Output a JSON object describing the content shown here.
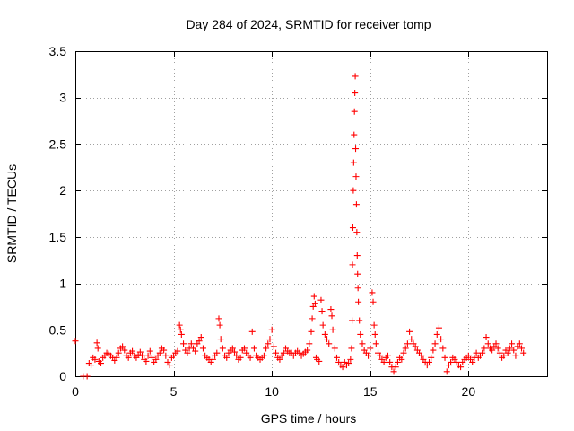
{
  "chart_data": {
    "type": "scatter",
    "title": "Day 284 of 2024, SRMTID for receiver tomp",
    "xlabel": "GPS time / hours",
    "ylabel": "SRMTID / TECUs",
    "xlim": [
      0,
      24
    ],
    "ylim": [
      0,
      3.5
    ],
    "x_ticks": [
      0,
      5,
      10,
      15,
      20
    ],
    "x_tick_labels": [
      "0",
      "5",
      "10",
      "15",
      "20"
    ],
    "y_ticks": [
      0,
      0.5,
      1,
      1.5,
      2,
      2.5,
      3,
      3.5
    ],
    "y_tick_labels": [
      "0",
      "0.5",
      "1",
      "1.5",
      "2",
      "2.5",
      "3",
      "3.5"
    ],
    "grid": true,
    "marker": "+",
    "marker_color": "#ff0000",
    "series": [
      {
        "name": "SRMTID",
        "points": [
          [
            0.0,
            0.38
          ],
          [
            0.4,
            0.0
          ],
          [
            0.6,
            0.0
          ],
          [
            0.7,
            0.14
          ],
          [
            0.8,
            0.12
          ],
          [
            0.9,
            0.2
          ],
          [
            1.0,
            0.18
          ],
          [
            1.1,
            0.36
          ],
          [
            1.15,
            0.3
          ],
          [
            1.2,
            0.16
          ],
          [
            1.3,
            0.14
          ],
          [
            1.4,
            0.2
          ],
          [
            1.5,
            0.22
          ],
          [
            1.6,
            0.25
          ],
          [
            1.7,
            0.24
          ],
          [
            1.8,
            0.22
          ],
          [
            1.9,
            0.2
          ],
          [
            2.0,
            0.17
          ],
          [
            2.1,
            0.2
          ],
          [
            2.2,
            0.25
          ],
          [
            2.3,
            0.3
          ],
          [
            2.4,
            0.32
          ],
          [
            2.5,
            0.28
          ],
          [
            2.6,
            0.22
          ],
          [
            2.7,
            0.2
          ],
          [
            2.8,
            0.25
          ],
          [
            2.9,
            0.27
          ],
          [
            3.0,
            0.22
          ],
          [
            3.1,
            0.2
          ],
          [
            3.2,
            0.23
          ],
          [
            3.3,
            0.26
          ],
          [
            3.4,
            0.22
          ],
          [
            3.5,
            0.18
          ],
          [
            3.6,
            0.16
          ],
          [
            3.7,
            0.22
          ],
          [
            3.8,
            0.27
          ],
          [
            3.9,
            0.2
          ],
          [
            4.0,
            0.15
          ],
          [
            4.1,
            0.18
          ],
          [
            4.2,
            0.22
          ],
          [
            4.3,
            0.25
          ],
          [
            4.4,
            0.3
          ],
          [
            4.5,
            0.28
          ],
          [
            4.6,
            0.22
          ],
          [
            4.7,
            0.15
          ],
          [
            4.8,
            0.12
          ],
          [
            4.9,
            0.2
          ],
          [
            5.0,
            0.22
          ],
          [
            5.1,
            0.25
          ],
          [
            5.2,
            0.27
          ],
          [
            5.3,
            0.55
          ],
          [
            5.35,
            0.5
          ],
          [
            5.4,
            0.45
          ],
          [
            5.5,
            0.35
          ],
          [
            5.6,
            0.28
          ],
          [
            5.7,
            0.25
          ],
          [
            5.8,
            0.3
          ],
          [
            5.9,
            0.35
          ],
          [
            6.0,
            0.3
          ],
          [
            6.1,
            0.27
          ],
          [
            6.2,
            0.35
          ],
          [
            6.3,
            0.38
          ],
          [
            6.4,
            0.42
          ],
          [
            6.5,
            0.3
          ],
          [
            6.6,
            0.22
          ],
          [
            6.7,
            0.2
          ],
          [
            6.8,
            0.18
          ],
          [
            6.9,
            0.15
          ],
          [
            7.0,
            0.18
          ],
          [
            7.1,
            0.22
          ],
          [
            7.2,
            0.25
          ],
          [
            7.3,
            0.62
          ],
          [
            7.35,
            0.55
          ],
          [
            7.4,
            0.4
          ],
          [
            7.5,
            0.3
          ],
          [
            7.6,
            0.22
          ],
          [
            7.7,
            0.2
          ],
          [
            7.8,
            0.25
          ],
          [
            7.9,
            0.28
          ],
          [
            8.0,
            0.3
          ],
          [
            8.1,
            0.26
          ],
          [
            8.2,
            0.22
          ],
          [
            8.3,
            0.18
          ],
          [
            8.4,
            0.2
          ],
          [
            8.5,
            0.28
          ],
          [
            8.6,
            0.3
          ],
          [
            8.7,
            0.25
          ],
          [
            8.8,
            0.22
          ],
          [
            8.9,
            0.2
          ],
          [
            9.0,
            0.48
          ],
          [
            9.1,
            0.3
          ],
          [
            9.2,
            0.22
          ],
          [
            9.3,
            0.2
          ],
          [
            9.4,
            0.18
          ],
          [
            9.5,
            0.2
          ],
          [
            9.6,
            0.22
          ],
          [
            9.7,
            0.3
          ],
          [
            9.8,
            0.35
          ],
          [
            9.9,
            0.4
          ],
          [
            10.0,
            0.5
          ],
          [
            10.1,
            0.32
          ],
          [
            10.2,
            0.25
          ],
          [
            10.3,
            0.2
          ],
          [
            10.4,
            0.18
          ],
          [
            10.5,
            0.22
          ],
          [
            10.6,
            0.25
          ],
          [
            10.7,
            0.3
          ],
          [
            10.8,
            0.27
          ],
          [
            10.9,
            0.25
          ],
          [
            11.0,
            0.25
          ],
          [
            11.1,
            0.22
          ],
          [
            11.2,
            0.25
          ],
          [
            11.3,
            0.27
          ],
          [
            11.4,
            0.25
          ],
          [
            11.5,
            0.22
          ],
          [
            11.6,
            0.24
          ],
          [
            11.7,
            0.26
          ],
          [
            11.8,
            0.28
          ],
          [
            11.9,
            0.35
          ],
          [
            12.0,
            0.48
          ],
          [
            12.05,
            0.62
          ],
          [
            12.1,
            0.75
          ],
          [
            12.15,
            0.86
          ],
          [
            12.2,
            0.78
          ],
          [
            12.25,
            0.2
          ],
          [
            12.3,
            0.18
          ],
          [
            12.4,
            0.16
          ],
          [
            12.5,
            0.82
          ],
          [
            12.55,
            0.7
          ],
          [
            12.6,
            0.55
          ],
          [
            12.7,
            0.45
          ],
          [
            12.8,
            0.4
          ],
          [
            12.9,
            0.35
          ],
          [
            13.0,
            0.72
          ],
          [
            13.05,
            0.65
          ],
          [
            13.1,
            0.5
          ],
          [
            13.2,
            0.3
          ],
          [
            13.3,
            0.2
          ],
          [
            13.4,
            0.15
          ],
          [
            13.5,
            0.12
          ],
          [
            13.6,
            0.1
          ],
          [
            13.7,
            0.15
          ],
          [
            13.8,
            0.12
          ],
          [
            13.9,
            0.14
          ],
          [
            14.0,
            0.18
          ],
          [
            14.05,
            0.3
          ],
          [
            14.08,
            0.6
          ],
          [
            14.1,
            1.2
          ],
          [
            14.12,
            1.6
          ],
          [
            14.14,
            2.0
          ],
          [
            14.16,
            2.3
          ],
          [
            14.18,
            2.6
          ],
          [
            14.2,
            2.85
          ],
          [
            14.22,
            3.05
          ],
          [
            14.24,
            3.23
          ],
          [
            14.26,
            2.45
          ],
          [
            14.28,
            2.15
          ],
          [
            14.3,
            1.85
          ],
          [
            14.32,
            1.55
          ],
          [
            14.34,
            1.3
          ],
          [
            14.36,
            1.1
          ],
          [
            14.38,
            0.95
          ],
          [
            14.4,
            0.8
          ],
          [
            14.45,
            0.6
          ],
          [
            14.5,
            0.45
          ],
          [
            14.6,
            0.35
          ],
          [
            14.7,
            0.28
          ],
          [
            14.8,
            0.25
          ],
          [
            14.9,
            0.22
          ],
          [
            15.0,
            0.3
          ],
          [
            15.1,
            0.9
          ],
          [
            15.15,
            0.8
          ],
          [
            15.2,
            0.55
          ],
          [
            15.25,
            0.45
          ],
          [
            15.3,
            0.35
          ],
          [
            15.4,
            0.25
          ],
          [
            15.5,
            0.22
          ],
          [
            15.6,
            0.18
          ],
          [
            15.7,
            0.15
          ],
          [
            15.8,
            0.2
          ],
          [
            15.9,
            0.22
          ],
          [
            16.0,
            0.15
          ],
          [
            16.1,
            0.1
          ],
          [
            16.2,
            0.05
          ],
          [
            16.3,
            0.1
          ],
          [
            16.4,
            0.15
          ],
          [
            16.5,
            0.2
          ],
          [
            16.6,
            0.18
          ],
          [
            16.7,
            0.25
          ],
          [
            16.8,
            0.3
          ],
          [
            16.9,
            0.35
          ],
          [
            17.0,
            0.48
          ],
          [
            17.1,
            0.4
          ],
          [
            17.2,
            0.35
          ],
          [
            17.3,
            0.32
          ],
          [
            17.4,
            0.28
          ],
          [
            17.5,
            0.25
          ],
          [
            17.6,
            0.22
          ],
          [
            17.7,
            0.18
          ],
          [
            17.8,
            0.15
          ],
          [
            17.9,
            0.12
          ],
          [
            18.0,
            0.15
          ],
          [
            18.1,
            0.2
          ],
          [
            18.2,
            0.28
          ],
          [
            18.3,
            0.35
          ],
          [
            18.4,
            0.45
          ],
          [
            18.5,
            0.52
          ],
          [
            18.6,
            0.4
          ],
          [
            18.7,
            0.3
          ],
          [
            18.8,
            0.2
          ],
          [
            18.9,
            0.05
          ],
          [
            19.0,
            0.12
          ],
          [
            19.1,
            0.15
          ],
          [
            19.2,
            0.2
          ],
          [
            19.3,
            0.18
          ],
          [
            19.4,
            0.15
          ],
          [
            19.5,
            0.12
          ],
          [
            19.6,
            0.1
          ],
          [
            19.7,
            0.15
          ],
          [
            19.8,
            0.18
          ],
          [
            19.9,
            0.2
          ],
          [
            20.0,
            0.22
          ],
          [
            20.1,
            0.18
          ],
          [
            20.2,
            0.15
          ],
          [
            20.3,
            0.2
          ],
          [
            20.4,
            0.25
          ],
          [
            20.5,
            0.2
          ],
          [
            20.6,
            0.22
          ],
          [
            20.7,
            0.25
          ],
          [
            20.8,
            0.3
          ],
          [
            20.9,
            0.42
          ],
          [
            21.0,
            0.35
          ],
          [
            21.1,
            0.3
          ],
          [
            21.2,
            0.28
          ],
          [
            21.3,
            0.32
          ],
          [
            21.4,
            0.35
          ],
          [
            21.5,
            0.3
          ],
          [
            21.6,
            0.25
          ],
          [
            21.7,
            0.2
          ],
          [
            21.8,
            0.22
          ],
          [
            21.9,
            0.28
          ],
          [
            22.0,
            0.25
          ],
          [
            22.1,
            0.3
          ],
          [
            22.2,
            0.35
          ],
          [
            22.3,
            0.28
          ],
          [
            22.4,
            0.22
          ],
          [
            22.5,
            0.32
          ],
          [
            22.6,
            0.35
          ],
          [
            22.7,
            0.3
          ],
          [
            22.8,
            0.25
          ]
        ]
      }
    ]
  }
}
